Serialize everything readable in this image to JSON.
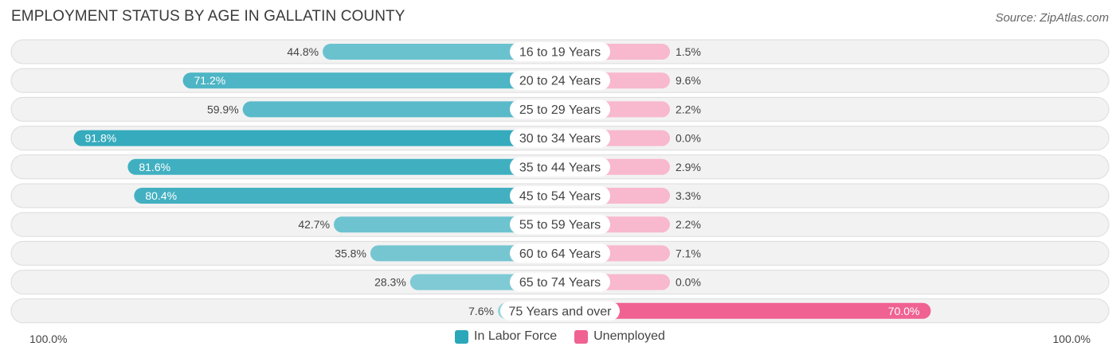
{
  "title": "EMPLOYMENT STATUS BY AGE IN GALLATIN COUNTY",
  "source": "Source: ZipAtlas.com",
  "axis": {
    "left_label": "100.0%",
    "right_label": "100.0%"
  },
  "legend": [
    {
      "label": "In Labor Force",
      "color": "#2ba7ba"
    },
    {
      "label": "Unemployed",
      "color": "#f06292"
    }
  ],
  "chart_data": {
    "type": "bar",
    "orientation": "diverging-horizontal",
    "title": "EMPLOYMENT STATUS BY AGE IN GALLATIN COUNTY",
    "categories": [
      "16 to 19 Years",
      "20 to 24 Years",
      "25 to 29 Years",
      "30 to 34 Years",
      "35 to 44 Years",
      "45 to 54 Years",
      "55 to 59 Years",
      "60 to 64 Years",
      "65 to 74 Years",
      "75 Years and over"
    ],
    "series": [
      {
        "name": "In Labor Force",
        "side": "left",
        "values": [
          44.8,
          71.2,
          59.9,
          91.8,
          81.6,
          80.4,
          42.7,
          35.8,
          28.3,
          7.6
        ],
        "labels": [
          "44.8%",
          "71.2%",
          "59.9%",
          "91.8%",
          "81.6%",
          "80.4%",
          "42.7%",
          "35.8%",
          "28.3%",
          "7.6%"
        ]
      },
      {
        "name": "Unemployed",
        "side": "right",
        "values": [
          1.5,
          9.6,
          2.2,
          0.0,
          2.9,
          3.3,
          2.2,
          7.1,
          0.0,
          70.0
        ],
        "labels": [
          "1.5%",
          "9.6%",
          "2.2%",
          "0.0%",
          "2.9%",
          "3.3%",
          "2.2%",
          "7.1%",
          "0.0%",
          "70.0%"
        ]
      }
    ],
    "xlim": [
      -100,
      100
    ],
    "xlabel_left": "100.0%",
    "xlabel_right": "100.0%",
    "legend_position": "bottom-center"
  }
}
